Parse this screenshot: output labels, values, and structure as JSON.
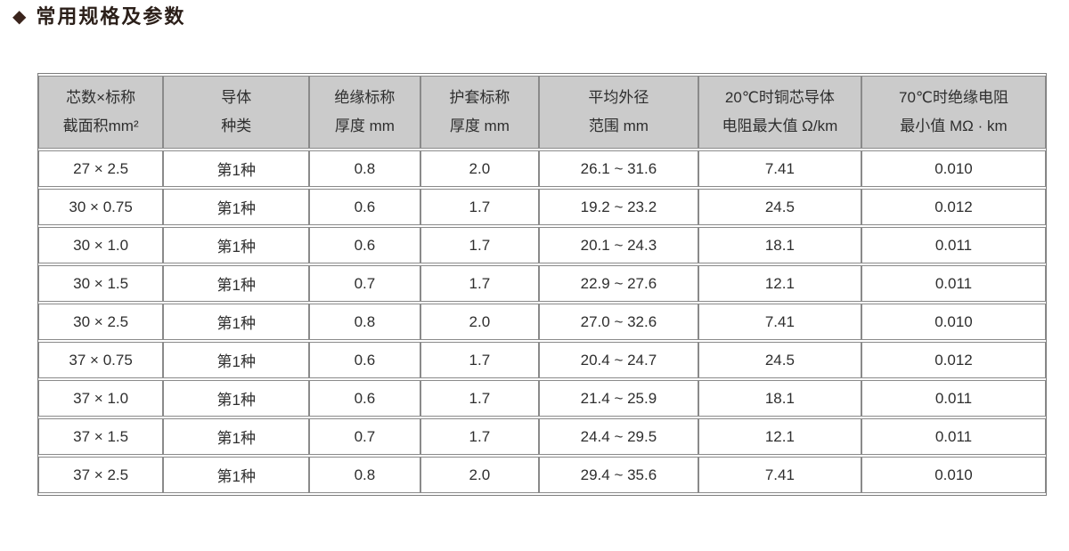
{
  "title": {
    "bullet": "◆",
    "text": "常用规格及参数"
  },
  "colors": {
    "header_background": "#cbcbcb",
    "cell_border": "#8a8a8a",
    "outer_border": "#7d7d7d",
    "title_color": "#2b1f19",
    "bullet_color": "#3a241c",
    "text_color": "#2e2e2e"
  },
  "table": {
    "columns": [
      {
        "line1": "芯数×标称",
        "line2": "截面积mm²"
      },
      {
        "line1": "导体",
        "line2": "种类"
      },
      {
        "line1": "绝缘标称",
        "line2": "厚度 mm"
      },
      {
        "line1": "护套标称",
        "line2": "厚度 mm"
      },
      {
        "line1": "平均外径",
        "line2": "范围 mm"
      },
      {
        "line1": "20℃时铜芯导体",
        "line2": "电阻最大值 Ω/km"
      },
      {
        "line1": "70℃时绝缘电阻",
        "line2": "最小值 MΩ · km"
      }
    ],
    "rows": [
      [
        "27 × 2.5",
        "第1种",
        "0.8",
        "2.0",
        "26.1 ~ 31.6",
        "7.41",
        "0.010"
      ],
      [
        "30 × 0.75",
        "第1种",
        "0.6",
        "1.7",
        "19.2 ~ 23.2",
        "24.5",
        "0.012"
      ],
      [
        "30 × 1.0",
        "第1种",
        "0.6",
        "1.7",
        "20.1 ~ 24.3",
        "18.1",
        "0.011"
      ],
      [
        "30 × 1.5",
        "第1种",
        "0.7",
        "1.7",
        "22.9 ~ 27.6",
        "12.1",
        "0.011"
      ],
      [
        "30 × 2.5",
        "第1种",
        "0.8",
        "2.0",
        "27.0 ~ 32.6",
        "7.41",
        "0.010"
      ],
      [
        "37 × 0.75",
        "第1种",
        "0.6",
        "1.7",
        "20.4 ~ 24.7",
        "24.5",
        "0.012"
      ],
      [
        "37 × 1.0",
        "第1种",
        "0.6",
        "1.7",
        "21.4 ~ 25.9",
        "18.1",
        "0.011"
      ],
      [
        "37 × 1.5",
        "第1种",
        "0.7",
        "1.7",
        "24.4 ~ 29.5",
        "12.1",
        "0.011"
      ],
      [
        "37 × 2.5",
        "第1种",
        "0.8",
        "2.0",
        "29.4 ~ 35.6",
        "7.41",
        "0.010"
      ]
    ]
  }
}
